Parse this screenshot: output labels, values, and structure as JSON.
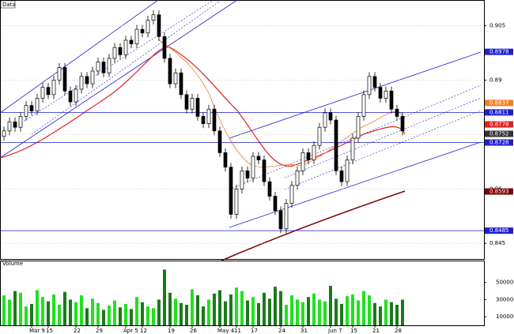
{
  "chart_data": {
    "type": "candlestick",
    "title": "Data",
    "categories": [
      null,
      null,
      null,
      null,
      null,
      "Mar 9",
      null,
      null,
      "15",
      null,
      null,
      null,
      null,
      "22",
      null,
      null,
      null,
      "29",
      null,
      null,
      null,
      null,
      "Apr 5",
      null,
      null,
      "12",
      null,
      null,
      null,
      null,
      "19",
      null,
      null,
      null,
      "26",
      null,
      null,
      null,
      null,
      "May 4",
      null,
      null,
      "11",
      null,
      null,
      "17",
      null,
      null,
      null,
      null,
      "24",
      null,
      null,
      null,
      "31",
      null,
      null,
      null,
      null,
      "Jun 7",
      null,
      null,
      null,
      "15",
      null,
      null,
      null,
      "21",
      null,
      null,
      null,
      "28",
      null
    ],
    "open": [
      0.8745,
      0.876,
      0.8785,
      0.877,
      0.88,
      0.883,
      0.8815,
      0.885,
      0.888,
      0.886,
      0.89,
      0.8935,
      0.887,
      0.884,
      0.8875,
      0.891,
      0.889,
      0.8925,
      0.895,
      0.892,
      0.896,
      0.899,
      0.897,
      0.901,
      0.9,
      0.904,
      0.903,
      0.9065,
      0.908,
      0.902,
      0.896,
      0.889,
      0.892,
      0.886,
      0.882,
      0.885,
      0.88,
      0.878,
      0.882,
      0.876,
      0.87,
      0.866,
      0.853,
      0.86,
      0.865,
      0.863,
      0.869,
      0.868,
      0.862,
      0.858,
      0.854,
      0.849,
      0.856,
      0.861,
      0.865,
      0.87,
      0.868,
      0.872,
      0.877,
      0.881,
      0.879,
      0.865,
      0.862,
      0.868,
      0.874,
      0.88,
      0.886,
      0.891,
      0.888,
      0.885,
      0.887,
      0.882,
      0.88
    ],
    "high": [
      0.8772,
      0.8797,
      0.8797,
      0.8812,
      0.8842,
      0.8842,
      0.8862,
      0.8892,
      0.8892,
      0.8912,
      0.8947,
      0.8947,
      0.8882,
      0.8887,
      0.8922,
      0.8922,
      0.8937,
      0.8962,
      0.8962,
      0.8972,
      0.9002,
      0.9002,
      0.9022,
      0.9022,
      0.9052,
      0.9052,
      0.9077,
      0.9092,
      0.9092,
      0.9032,
      0.8972,
      0.8932,
      0.8932,
      0.8872,
      0.8862,
      0.8862,
      0.8812,
      0.8832,
      0.8832,
      0.8772,
      0.8712,
      0.8672,
      0.8612,
      0.8662,
      0.8662,
      0.8702,
      0.8702,
      0.8692,
      0.8632,
      0.8592,
      0.8552,
      0.8572,
      0.8622,
      0.8662,
      0.8712,
      0.8712,
      0.8732,
      0.8782,
      0.8822,
      0.8822,
      0.8802,
      0.8662,
      0.8692,
      0.8752,
      0.8812,
      0.8872,
      0.8922,
      0.8922,
      0.8892,
      0.8882,
      0.8882,
      0.8832,
      0.8812
    ],
    "low": [
      0.8733,
      0.8748,
      0.8758,
      0.8758,
      0.8788,
      0.8803,
      0.8803,
      0.8838,
      0.8848,
      0.8848,
      0.8888,
      0.8858,
      0.8828,
      0.8828,
      0.8863,
      0.8878,
      0.8878,
      0.8913,
      0.8908,
      0.8908,
      0.8948,
      0.8958,
      0.8958,
      0.8988,
      0.8988,
      0.9018,
      0.9018,
      0.9053,
      0.9008,
      0.8948,
      0.8878,
      0.8878,
      0.8848,
      0.8808,
      0.8808,
      0.8788,
      0.8768,
      0.8768,
      0.8748,
      0.8688,
      0.8648,
      0.8518,
      0.8518,
      0.8588,
      0.8618,
      0.8618,
      0.8668,
      0.8608,
      0.8568,
      0.8528,
      0.8478,
      0.8478,
      0.8548,
      0.8598,
      0.8638,
      0.8668,
      0.8668,
      0.8708,
      0.8758,
      0.8778,
      0.8638,
      0.8608,
      0.8608,
      0.8668,
      0.8728,
      0.8788,
      0.8848,
      0.8868,
      0.8838,
      0.8838,
      0.8808,
      0.8788,
      0.8748
    ],
    "close": [
      0.876,
      0.8785,
      0.877,
      0.88,
      0.883,
      0.8815,
      0.885,
      0.888,
      0.886,
      0.89,
      0.8935,
      0.887,
      0.884,
      0.8875,
      0.891,
      0.889,
      0.8925,
      0.895,
      0.892,
      0.896,
      0.899,
      0.897,
      0.901,
      0.9,
      0.904,
      0.903,
      0.9065,
      0.908,
      0.902,
      0.896,
      0.889,
      0.892,
      0.886,
      0.882,
      0.885,
      0.88,
      0.878,
      0.882,
      0.876,
      0.87,
      0.866,
      0.853,
      0.86,
      0.865,
      0.863,
      0.869,
      0.868,
      0.862,
      0.858,
      0.854,
      0.849,
      0.856,
      0.861,
      0.865,
      0.87,
      0.868,
      0.872,
      0.877,
      0.881,
      0.879,
      0.865,
      0.862,
      0.868,
      0.874,
      0.88,
      0.886,
      0.891,
      0.888,
      0.885,
      0.887,
      0.882,
      0.88,
      0.876
    ],
    "ylim": [
      0.842,
      0.911
    ],
    "yticks": [
      0.905,
      0.89,
      0.875,
      0.86,
      0.845
    ],
    "levels": [
      {
        "value": 0.8978,
        "color": "#1f1fd0"
      },
      {
        "value": 0.8837,
        "color": "#f08020"
      },
      {
        "value": 0.8811,
        "color": "#1f1fd0"
      },
      {
        "value": 0.8778,
        "color": "#e02020"
      },
      {
        "value": 0.8752,
        "color": "#333333"
      },
      {
        "value": 0.8728,
        "color": "#1f1fd0"
      },
      {
        "value": 0.8593,
        "color": "#800000"
      },
      {
        "value": 0.8485,
        "color": "#1f1fd0"
      }
    ],
    "volume": {
      "title": "Volume",
      "values": [
        35000,
        30000,
        40000,
        38000,
        22000,
        25000,
        41000,
        33000,
        28000,
        36000,
        24000,
        39000,
        30000,
        27000,
        35000,
        20000,
        31000,
        26000,
        18000,
        23000,
        29000,
        21000,
        25000,
        19000,
        33000,
        27000,
        22000,
        20000,
        30000,
        65000,
        38000,
        31000,
        26000,
        24000,
        42000,
        35000,
        22000,
        30000,
        37000,
        41000,
        28000,
        36000,
        44000,
        40000,
        29000,
        33000,
        26000,
        38000,
        31000,
        45000,
        40000,
        24000,
        35000,
        30000,
        27000,
        33000,
        37000,
        30000,
        28000,
        46000,
        31000,
        25000,
        34000,
        36000,
        29000,
        40000,
        35000,
        26000,
        22000,
        30000,
        27000,
        24000,
        30000
      ],
      "up_color": "#22e022",
      "down_color": "#1a7a1a",
      "ylim": [
        0,
        70000
      ],
      "yticks": [
        {
          "value": 50000,
          "label": "50000K"
        },
        {
          "value": 30000,
          "label": "30000K"
        },
        {
          "value": 10000,
          "label": "10000K"
        }
      ]
    }
  }
}
